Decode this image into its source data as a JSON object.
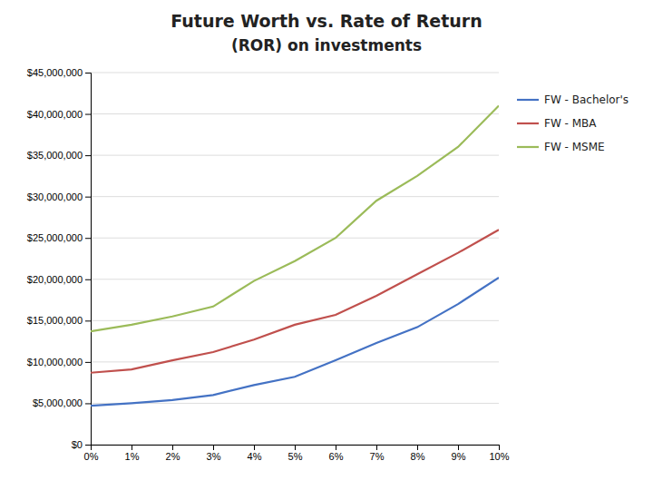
{
  "chart_data": {
    "type": "line",
    "title": "Future Worth vs. Rate of Return",
    "subtitle": "(ROR) on investments",
    "x": [
      0,
      1,
      2,
      3,
      4,
      5,
      6,
      7,
      8,
      9,
      10
    ],
    "xlim": [
      0,
      10
    ],
    "xticks": [
      {
        "value": 0,
        "label": "0%"
      },
      {
        "value": 1,
        "label": "1%"
      },
      {
        "value": 2,
        "label": "2%"
      },
      {
        "value": 3,
        "label": "3%"
      },
      {
        "value": 4,
        "label": "4%"
      },
      {
        "value": 5,
        "label": "5%"
      },
      {
        "value": 6,
        "label": "6%"
      },
      {
        "value": 7,
        "label": "7%"
      },
      {
        "value": 8,
        "label": "8%"
      },
      {
        "value": 9,
        "label": "9%"
      },
      {
        "value": 10,
        "label": "10%"
      }
    ],
    "ylim": [
      0,
      45000000
    ],
    "yticks": [
      {
        "value": 0,
        "label": "$0"
      },
      {
        "value": 5000000,
        "label": "$5,000,000"
      },
      {
        "value": 10000000,
        "label": "$10,000,000"
      },
      {
        "value": 15000000,
        "label": "$15,000,000"
      },
      {
        "value": 20000000,
        "label": "$20,000,000"
      },
      {
        "value": 25000000,
        "label": "$25,000,000"
      },
      {
        "value": 30000000,
        "label": "$30,000,000"
      },
      {
        "value": 35000000,
        "label": "$35,000,000"
      },
      {
        "value": 40000000,
        "label": "$40,000,000"
      },
      {
        "value": 45000000,
        "label": "$45,000,000"
      }
    ],
    "grid": true,
    "legend": "right",
    "series": [
      {
        "name": "FW - Bachelor's",
        "color": "#4472c4",
        "values": [
          4700000,
          5000000,
          5400000,
          6000000,
          7200000,
          8200000,
          10200000,
          12300000,
          14200000,
          17000000,
          20200000
        ]
      },
      {
        "name": "FW - MBA",
        "color": "#c0504d",
        "values": [
          8700000,
          9100000,
          10200000,
          11200000,
          12700000,
          14500000,
          15700000,
          18000000,
          20600000,
          23200000,
          26000000
        ]
      },
      {
        "name": "FW - MSME",
        "color": "#9bbb59",
        "values": [
          13700000,
          14500000,
          15500000,
          16700000,
          19800000,
          22200000,
          25000000,
          29500000,
          32500000,
          36000000,
          41000000
        ]
      }
    ]
  }
}
